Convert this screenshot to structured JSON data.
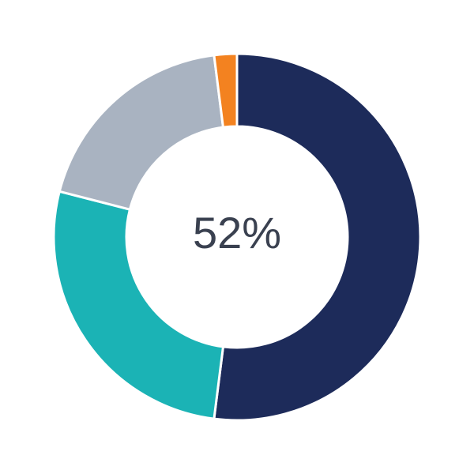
{
  "chart_data": {
    "type": "pie",
    "variant": "donut",
    "center_label": "52%",
    "slices": [
      {
        "value": 52,
        "color": "#1d2b5a"
      },
      {
        "value": 27,
        "color": "#1bb3b5"
      },
      {
        "value": 19,
        "color": "#a9b3c1"
      },
      {
        "value": 2,
        "color": "#f38220"
      }
    ],
    "start": "top",
    "direction": "clockwise"
  }
}
